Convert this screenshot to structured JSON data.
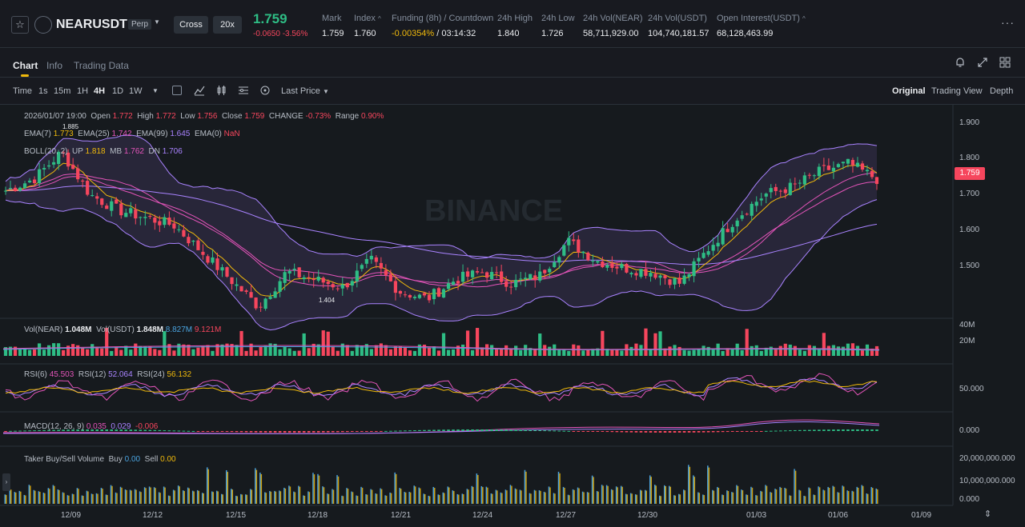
{
  "header": {
    "symbol": "NEARUSDT",
    "contract_type": "Perp",
    "margin_mode": "Cross",
    "leverage": "20x",
    "last_price": "1.759",
    "change": "-0.0650",
    "change_pct": "-3.56%",
    "stats": [
      {
        "label": "Mark",
        "value": "1.759"
      },
      {
        "label": "Index",
        "value": "1.760"
      },
      {
        "label": "Funding (8h) / Countdown",
        "value": "-0.00354%",
        "value2": "/ 03:14:32"
      },
      {
        "label": "24h High",
        "value": "1.840"
      },
      {
        "label": "24h Low",
        "value": "1.726"
      },
      {
        "label": "24h Vol(NEAR)",
        "value": "58,711,929.00"
      },
      {
        "label": "24h Vol(USDT)",
        "value": "104,740,181.57"
      },
      {
        "label": "Open Interest(USDT)",
        "value": "68,128,463.99"
      }
    ],
    "colors": {
      "up": "#2ebd85",
      "down": "#f6465d",
      "accent": "#f0b90b"
    }
  },
  "tabs": [
    "Chart",
    "Info",
    "Trading Data"
  ],
  "toolbar": {
    "intervals": [
      "Time",
      "1s",
      "15m",
      "1H",
      "4H",
      "1D",
      "1W"
    ],
    "active_interval": "4H",
    "price_type": "Last Price",
    "views": [
      "Original",
      "Trading View",
      "Depth"
    ]
  },
  "legend": {
    "date": "2026/01/07 19:00",
    "open_l": "Open",
    "open": "1.772",
    "high_l": "High",
    "high": "1.772",
    "low_l": "Low",
    "low": "1.756",
    "close_l": "Close",
    "close": "1.759",
    "change_l": "CHANGE",
    "change": "-0.73%",
    "range_l": "Range",
    "range": "0.90%",
    "ema7_l": "EMA(7)",
    "ema7": "1.773",
    "ema25_l": "EMA(25)",
    "ema25": "1.742",
    "ema99_l": "EMA(99)",
    "ema99": "1.645",
    "ema0_l": "EMA(0)",
    "ema0": "NaN",
    "boll_l": "BOLL(20, 2)",
    "up_l": "UP",
    "up": "1.818",
    "mb_l": "MB",
    "mb": "1.762",
    "dn_l": "DN",
    "dn": "1.706",
    "high_marker": "1.885",
    "low_marker": "1.404"
  },
  "vol_legend": {
    "near_l": "Vol(NEAR)",
    "near": "1.048M",
    "usdt_l": "Vol(USDT)",
    "usdt": "1.848M",
    "ma1": "8.827M",
    "ma2": "9.121M"
  },
  "rsi_legend": {
    "r6_l": "RSI(6)",
    "r6": "45.503",
    "r12_l": "RSI(12)",
    "r12": "52.064",
    "r24_l": "RSI(24)",
    "r24": "56.132"
  },
  "macd_legend": {
    "label": "MACD(12, 26, 9)",
    "v1": "0.035",
    "v2": "0.029",
    "v3": "-0.006"
  },
  "taker_legend": {
    "label": "Taker Buy/Sell Volume",
    "buy_l": "Buy",
    "buy": "0.00",
    "sell_l": "Sell",
    "sell": "0.00"
  },
  "price_axis": [
    "1.900",
    "1.800",
    "1.700",
    "1.600",
    "1.500"
  ],
  "current_price_tag": "1.759",
  "vol_axis": [
    "40M",
    "20M"
  ],
  "rsi_axis": [
    "50.000"
  ],
  "macd_axis": [
    "0.000"
  ],
  "taker_axis": [
    "20,000,000.000",
    "10,000,000.000",
    "0.000"
  ],
  "x_axis": [
    "12/09",
    "12/12",
    "12/15",
    "12/18",
    "12/21",
    "12/24",
    "12/27",
    "12/30",
    "01/03",
    "01/06",
    "01/09"
  ],
  "watermark": "BINANCE",
  "chart_data": {
    "type": "candlestick",
    "price_key_points": [
      1.73,
      1.76,
      1.83,
      1.72,
      1.68,
      1.66,
      1.64,
      1.57,
      1.5,
      1.43,
      1.52,
      1.5,
      1.48,
      1.55,
      1.47,
      1.45,
      1.5,
      1.52,
      1.49,
      1.51,
      1.6,
      1.55,
      1.53,
      1.52,
      1.49,
      1.58,
      1.66,
      1.72,
      1.74,
      1.78,
      1.8,
      1.76
    ],
    "ylim": [
      1.4,
      1.95
    ]
  }
}
